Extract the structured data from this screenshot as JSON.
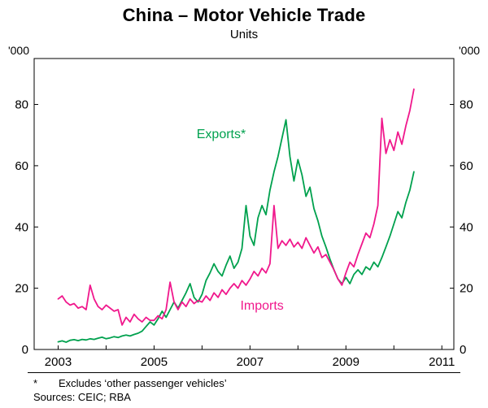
{
  "title": "China – Motor Vehicle Trade",
  "subtitle": "Units",
  "y_unit_left": "'000",
  "y_unit_right": "'000",
  "footnote": {
    "marker": "*",
    "text": "Excludes ‘other passenger vehicles’",
    "sources": "Sources: CEIC; RBA"
  },
  "colors": {
    "axis": "#000000",
    "exports": "#00a14e",
    "imports": "#f0188c"
  },
  "chart_data": {
    "type": "line",
    "title": "China – Motor Vehicle Trade",
    "subtitle": "Units",
    "ylabel": "'000",
    "ylim": [
      0,
      95
    ],
    "yticks": [
      0,
      20,
      40,
      60,
      80
    ],
    "xlim": [
      2002.5,
      2011.25
    ],
    "xticks": [
      2003,
      2005,
      2007,
      2009,
      2011
    ],
    "x_start": 2003.0,
    "x_step_months": 1,
    "grid": false,
    "legend_position": "inline-labels",
    "series": [
      {
        "id": "exports",
        "name": "Exports*",
        "color": "#00a14e",
        "label_pos": [
          2006.4,
          69
        ],
        "values": [
          2.5,
          2.8,
          2.4,
          3.0,
          3.2,
          2.9,
          3.3,
          3.1,
          3.5,
          3.3,
          3.7,
          4.0,
          3.5,
          3.8,
          4.2,
          3.9,
          4.4,
          4.7,
          4.4,
          4.9,
          5.3,
          6.0,
          7.5,
          9.0,
          8.0,
          10.0,
          12.5,
          10.5,
          13.0,
          15.5,
          13.5,
          16.0,
          18.5,
          21.5,
          17.0,
          15.5,
          18.0,
          22.5,
          25.0,
          28.0,
          25.5,
          24.0,
          27.5,
          30.5,
          26.5,
          28.5,
          33.0,
          47.0,
          37.0,
          34.0,
          43.0,
          47.0,
          44.0,
          52.0,
          58.0,
          63.0,
          69.0,
          75.0,
          63.0,
          55.0,
          62.0,
          57.0,
          50.0,
          53.0,
          46.0,
          42.0,
          37.0,
          33.5,
          29.5,
          26.0,
          23.0,
          21.5,
          23.5,
          21.5,
          24.5,
          26.0,
          24.5,
          27.0,
          26.0,
          28.5,
          27.0,
          30.0,
          33.5,
          37.0,
          41.0,
          45.0,
          43.0,
          48.0,
          52.0,
          58.0
        ]
      },
      {
        "id": "imports",
        "name": "Imports",
        "color": "#f0188c",
        "label_pos": [
          2007.25,
          13
        ],
        "values": [
          16.5,
          17.5,
          15.5,
          14.5,
          15.0,
          13.5,
          14.0,
          13.0,
          21.0,
          16.5,
          14.0,
          13.0,
          14.5,
          13.5,
          12.5,
          13.0,
          8.0,
          10.5,
          9.0,
          11.5,
          10.0,
          9.0,
          10.5,
          9.5,
          9.5,
          11.0,
          10.0,
          13.0,
          22.0,
          15.5,
          13.0,
          15.5,
          14.0,
          16.5,
          15.0,
          16.0,
          15.5,
          17.5,
          16.0,
          18.5,
          17.0,
          19.5,
          18.0,
          20.0,
          21.5,
          20.0,
          22.5,
          21.0,
          23.0,
          25.5,
          24.0,
          26.5,
          25.0,
          28.0,
          47.0,
          33.0,
          35.5,
          34.0,
          36.0,
          33.5,
          35.0,
          33.0,
          36.5,
          34.0,
          31.5,
          33.5,
          30.0,
          31.0,
          28.5,
          26.0,
          23.0,
          21.0,
          25.0,
          28.5,
          27.0,
          31.0,
          34.5,
          38.0,
          36.5,
          41.0,
          47.0,
          75.5,
          64.0,
          68.5,
          65.0,
          71.0,
          67.0,
          73.0,
          78.0,
          85.0
        ]
      }
    ]
  }
}
